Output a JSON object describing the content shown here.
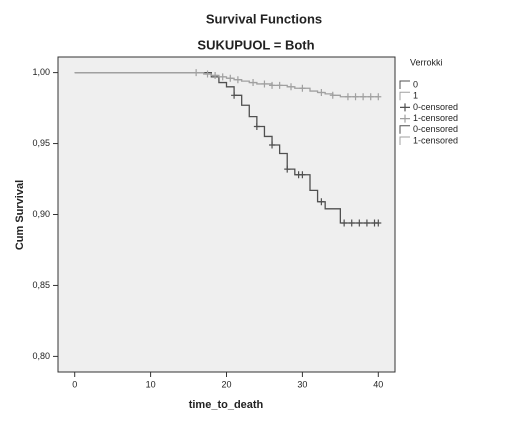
{
  "chart_data": {
    "type": "line",
    "title": "Survival Functions",
    "subtitle": "SUKUPUOL = Both",
    "xlabel": "time_to_death",
    "ylabel": "Cum Survival",
    "xlim": [
      -2.2,
      42.2
    ],
    "ylim": [
      0.789,
      1.011
    ],
    "xticks": [
      0,
      10,
      20,
      30,
      40
    ],
    "yticks": [
      {
        "value": 0.8,
        "label": "0,80"
      },
      {
        "value": 0.85,
        "label": "0,85"
      },
      {
        "value": 0.9,
        "label": "0,90"
      },
      {
        "value": 0.95,
        "label": "0,95"
      },
      {
        "value": 1.0,
        "label": "1,00"
      }
    ],
    "background": "#efefef",
    "series": [
      {
        "name": "0",
        "color": "#505050",
        "step": true,
        "x": [
          0,
          18,
          19,
          20,
          21,
          22,
          23,
          24,
          25,
          26,
          27,
          28,
          29,
          31,
          32,
          33,
          35,
          40
        ],
        "values": [
          1,
          0.997,
          0.993,
          0.99,
          0.984,
          0.977,
          0.969,
          0.962,
          0.955,
          0.949,
          0.943,
          0.932,
          0.928,
          0.917,
          0.909,
          0.904,
          0.894,
          0.894
        ]
      },
      {
        "name": "1",
        "color": "#a0a0a0",
        "step": true,
        "x": [
          0,
          17,
          18,
          19,
          20,
          21,
          22,
          23,
          24,
          26,
          28,
          29,
          31,
          32,
          33,
          34,
          35,
          40
        ],
        "values": [
          1,
          0.999,
          0.998,
          0.997,
          0.996,
          0.995,
          0.994,
          0.993,
          0.992,
          0.991,
          0.99,
          0.989,
          0.987,
          0.986,
          0.985,
          0.984,
          0.983,
          0.983
        ]
      },
      {
        "name": "0-censored",
        "color": "#505050",
        "marker": "+",
        "x": [
          21,
          24,
          26,
          28,
          29.5,
          30,
          32.5,
          35.5,
          36.5,
          37.5,
          38.5,
          39.5,
          40
        ],
        "values": [
          0.984,
          0.962,
          0.949,
          0.932,
          0.928,
          0.928,
          0.909,
          0.894,
          0.894,
          0.894,
          0.894,
          0.894,
          0.894
        ]
      },
      {
        "name": "1-censored",
        "color": "#a0a0a0",
        "marker": "+",
        "x": [
          16,
          17.5,
          18.5,
          19.5,
          20.5,
          21.5,
          23.5,
          25,
          26,
          27,
          28.5,
          30,
          32.5,
          34,
          36,
          37,
          38,
          39,
          40
        ],
        "values": [
          1,
          0.999,
          0.998,
          0.997,
          0.996,
          0.995,
          0.993,
          0.992,
          0.991,
          0.991,
          0.99,
          0.989,
          0.986,
          0.984,
          0.983,
          0.983,
          0.983,
          0.983,
          0.983
        ]
      }
    ],
    "legend": {
      "title": "Verrokki",
      "entries": [
        "0",
        "1",
        "0-censored",
        "1-censored",
        "0-censored",
        "1-censored"
      ]
    }
  }
}
